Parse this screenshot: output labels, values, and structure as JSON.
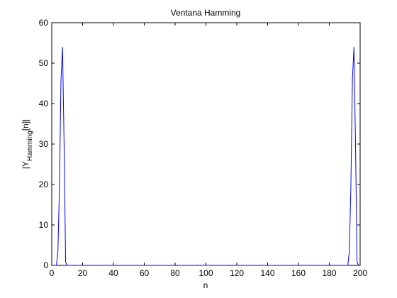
{
  "chart_data": {
    "type": "line",
    "title": "Ventana Hamming",
    "xlabel": "n",
    "ylabel_main": "|Y",
    "ylabel_sub": "Hamming",
    "ylabel_tail": "[n]|",
    "xlim": [
      0,
      200
    ],
    "ylim": [
      0,
      60
    ],
    "xticks": [
      0,
      20,
      40,
      60,
      80,
      100,
      120,
      140,
      160,
      180,
      200
    ],
    "yticks": [
      0,
      10,
      20,
      30,
      40,
      50,
      60
    ],
    "grid": false,
    "series_color": "#0000ff",
    "series": [
      {
        "x": [
          0,
          1,
          2,
          3,
          4,
          5,
          6,
          7,
          8,
          9,
          10,
          20,
          40,
          60,
          80,
          100,
          120,
          140,
          160,
          180,
          190,
          191,
          192,
          193,
          194,
          195,
          196,
          197,
          198,
          199
        ],
        "y": [
          0,
          0,
          0,
          0,
          3.5,
          19.5,
          46,
          54,
          30,
          0.8,
          0,
          0,
          0,
          0,
          0,
          0,
          0,
          0,
          0,
          0,
          0,
          0,
          0,
          3.5,
          19.5,
          46,
          54,
          30,
          0.8,
          0
        ]
      }
    ]
  }
}
